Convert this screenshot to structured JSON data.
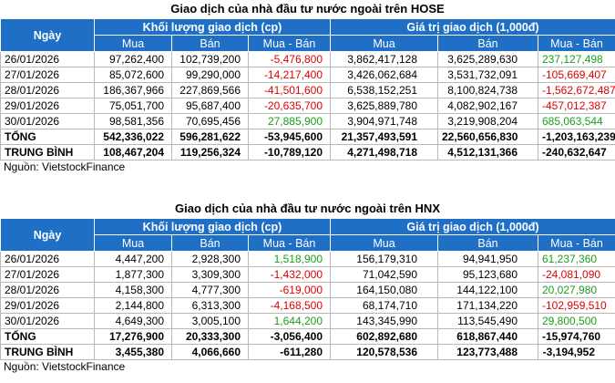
{
  "tables": [
    {
      "title": "Giao dịch của nhà đầu tư nước ngoài trên HOSE",
      "header": {
        "date": "Ngày",
        "groups": [
          "Khối lượng giao dịch (cp)",
          "Giá trị giao dịch (1,000đ)"
        ],
        "columns": [
          "Mua",
          "Bán",
          "Mua - Bán",
          "Mua",
          "Bán",
          "Mua - Bán"
        ]
      },
      "rows": [
        [
          "26/01/2026",
          "97,262,400",
          "102,739,200",
          "-5,476,800",
          "3,862,417,128",
          "3,625,289,630",
          "237,127,498"
        ],
        [
          "27/01/2026",
          "85,072,600",
          "99,290,000",
          "-14,217,400",
          "3,426,062,684",
          "3,531,732,091",
          "-105,669,407"
        ],
        [
          "28/01/2026",
          "186,367,966",
          "227,869,566",
          "-41,501,600",
          "6,538,152,251",
          "8,100,824,738",
          "-1,562,672,487"
        ],
        [
          "29/01/2026",
          "75,051,700",
          "95,687,400",
          "-20,635,700",
          "3,625,889,780",
          "4,082,902,167",
          "-457,012,387"
        ],
        [
          "30/01/2026",
          "98,581,356",
          "70,695,456",
          "27,885,900",
          "3,904,971,748",
          "3,219,908,204",
          "685,063,544"
        ]
      ],
      "summary": [
        [
          "TỔNG",
          "542,336,022",
          "596,281,622",
          "-53,945,600",
          "21,357,493,591",
          "22,560,656,830",
          "-1,203,163,239"
        ],
        [
          "TRUNG BÌNH",
          "108,467,204",
          "119,256,324",
          "-10,789,120",
          "4,271,498,718",
          "4,512,131,366",
          "-240,632,647"
        ]
      ],
      "source": "Nguồn: VietstockFinance"
    },
    {
      "title": "Giao dịch của nhà đầu tư nước ngoài trên HNX",
      "header": {
        "date": "Ngày",
        "groups": [
          "Khối lượng giao dịch (cp)",
          "Giá trị giao dịch (1,000đ)"
        ],
        "columns": [
          "Mua",
          "Bán",
          "Mua - Bán",
          "Mua",
          "Bán",
          "Mua - Bán"
        ]
      },
      "rows": [
        [
          "26/01/2026",
          "4,447,200",
          "2,928,300",
          "1,518,900",
          "156,179,310",
          "94,941,950",
          "61,237,360"
        ],
        [
          "27/01/2026",
          "1,877,300",
          "3,309,300",
          "-1,432,000",
          "71,042,590",
          "95,123,680",
          "-24,081,090"
        ],
        [
          "28/01/2026",
          "4,158,300",
          "4,777,300",
          "-619,000",
          "164,150,080",
          "144,122,100",
          "20,027,980"
        ],
        [
          "29/01/2026",
          "2,144,800",
          "6,313,300",
          "-4,168,500",
          "68,174,710",
          "171,134,220",
          "-102,959,510"
        ],
        [
          "30/01/2026",
          "4,649,300",
          "3,005,100",
          "1,644,200",
          "143,345,990",
          "113,545,490",
          "29,800,500"
        ]
      ],
      "summary": [
        [
          "TỔNG",
          "17,276,900",
          "20,333,300",
          "-3,056,400",
          "602,892,680",
          "618,867,440",
          "-15,974,760"
        ],
        [
          "TRUNG BÌNH",
          "3,455,380",
          "4,066,660",
          "-611,280",
          "120,578,536",
          "123,773,488",
          "-3,194,952"
        ]
      ],
      "source": "Nguồn: VietstockFinance"
    }
  ]
}
